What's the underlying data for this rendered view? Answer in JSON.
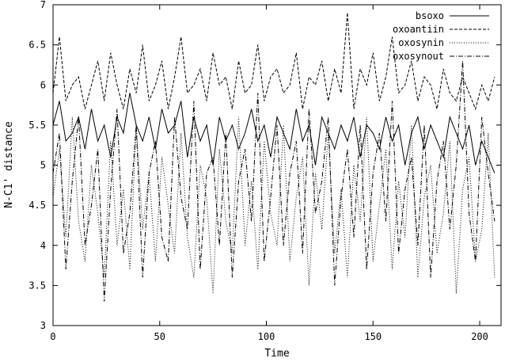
{
  "chart_data": {
    "type": "line",
    "title": "",
    "xlabel": "Time",
    "ylabel": "N-C1' distance",
    "xlim": [
      0,
      210
    ],
    "ylim": [
      3,
      7
    ],
    "x_ticks": [
      0,
      50,
      100,
      150,
      200
    ],
    "y_ticks": [
      3,
      3.5,
      4,
      4.5,
      5,
      5.5,
      6,
      6.5,
      7
    ],
    "grid": false,
    "legend_position": "top-right",
    "series": [
      {
        "name": "bsoxo",
        "dash": "solid",
        "x": [
          0,
          3,
          6,
          9,
          12,
          15,
          18,
          21,
          24,
          27,
          30,
          33,
          36,
          39,
          42,
          45,
          48,
          51,
          54,
          57,
          60,
          63,
          66,
          69,
          72,
          75,
          78,
          81,
          84,
          87,
          90,
          93,
          96,
          99,
          102,
          105,
          108,
          111,
          114,
          117,
          120,
          123,
          126,
          129,
          132,
          135,
          138,
          141,
          144,
          147,
          150,
          153,
          156,
          159,
          162,
          165,
          168,
          171,
          174,
          177,
          180,
          183,
          186,
          189,
          192,
          195,
          198,
          201,
          204,
          207
        ],
        "values": [
          5.5,
          5.8,
          5.3,
          5.4,
          5.6,
          5.2,
          5.7,
          5.3,
          5.5,
          5.1,
          5.6,
          5.4,
          5.9,
          5.5,
          5.3,
          5.6,
          5.2,
          5.7,
          5.4,
          5.5,
          5.8,
          5.1,
          5.6,
          5.3,
          5.5,
          5.0,
          5.6,
          5.3,
          5.5,
          5.2,
          5.4,
          5.7,
          5.3,
          5.5,
          5.1,
          5.6,
          5.4,
          5.2,
          5.7,
          5.3,
          5.5,
          5.0,
          5.6,
          5.4,
          5.2,
          5.5,
          5.3,
          5.6,
          5.1,
          5.5,
          5.4,
          5.2,
          5.6,
          5.3,
          5.5,
          5.0,
          5.4,
          5.6,
          5.2,
          5.5,
          5.3,
          5.1,
          5.6,
          5.4,
          5.2,
          5.5,
          5.0,
          5.3,
          5.1,
          4.9
        ]
      },
      {
        "name": "oxoantiin",
        "dash": "4,2",
        "x": [
          0,
          3,
          6,
          9,
          12,
          15,
          18,
          21,
          24,
          27,
          30,
          33,
          36,
          39,
          42,
          45,
          48,
          51,
          54,
          57,
          60,
          63,
          66,
          69,
          72,
          75,
          78,
          81,
          84,
          87,
          90,
          93,
          96,
          99,
          102,
          105,
          108,
          111,
          114,
          117,
          120,
          123,
          126,
          129,
          132,
          135,
          138,
          141,
          144,
          147,
          150,
          153,
          156,
          159,
          162,
          165,
          168,
          171,
          174,
          177,
          180,
          183,
          186,
          189,
          192,
          195,
          198,
          201,
          204,
          207
        ],
        "values": [
          5.9,
          6.6,
          5.8,
          6.0,
          6.1,
          5.7,
          6.0,
          6.3,
          5.8,
          6.4,
          6.0,
          5.7,
          6.2,
          5.9,
          6.5,
          5.8,
          6.0,
          6.3,
          5.7,
          6.1,
          6.6,
          5.9,
          6.0,
          6.2,
          5.8,
          6.4,
          6.0,
          6.1,
          5.7,
          6.3,
          5.9,
          6.0,
          6.5,
          5.8,
          6.1,
          6.2,
          5.9,
          6.0,
          6.4,
          5.7,
          6.1,
          6.0,
          6.3,
          5.8,
          6.2,
          5.9,
          6.9,
          5.7,
          6.2,
          6.0,
          6.4,
          5.8,
          6.1,
          6.6,
          5.9,
          6.0,
          6.3,
          5.8,
          6.1,
          6.0,
          5.7,
          6.2,
          5.9,
          5.8,
          6.1,
          5.9,
          5.7,
          6.0,
          5.8,
          6.1
        ]
      },
      {
        "name": "oxosynin",
        "dash": "1,2",
        "x": [
          0,
          3,
          6,
          9,
          12,
          15,
          18,
          21,
          24,
          27,
          30,
          33,
          36,
          39,
          42,
          45,
          48,
          51,
          54,
          57,
          60,
          63,
          66,
          69,
          72,
          75,
          78,
          81,
          84,
          87,
          90,
          93,
          96,
          99,
          102,
          105,
          108,
          111,
          114,
          117,
          120,
          123,
          126,
          129,
          132,
          135,
          138,
          141,
          144,
          147,
          150,
          153,
          156,
          159,
          162,
          165,
          168,
          171,
          174,
          177,
          180,
          183,
          186,
          189,
          192,
          195,
          198,
          201,
          204,
          207
        ],
        "values": [
          4.6,
          5.2,
          4.1,
          5.6,
          4.3,
          3.8,
          5.0,
          4.4,
          3.6,
          5.3,
          4.0,
          4.7,
          3.7,
          5.5,
          4.2,
          4.9,
          3.8,
          5.1,
          4.5,
          3.9,
          5.4,
          4.1,
          3.6,
          5.0,
          4.6,
          3.4,
          5.2,
          4.3,
          3.9,
          5.6,
          4.0,
          4.8,
          3.7,
          5.3,
          4.4,
          4.0,
          5.5,
          3.8,
          4.6,
          5.1,
          3.5,
          4.9,
          4.2,
          5.4,
          3.9,
          4.7,
          3.6,
          5.0,
          4.3,
          5.6,
          3.8,
          4.5,
          5.2,
          3.7,
          4.8,
          4.1,
          5.5,
          3.6,
          4.6,
          5.0,
          3.9,
          4.4,
          5.3,
          3.4,
          4.7,
          5.1,
          3.8,
          4.2,
          5.4,
          3.6
        ]
      },
      {
        "name": "oxosynout",
        "dash": "6,2,1,2",
        "x": [
          0,
          3,
          6,
          9,
          12,
          15,
          18,
          21,
          24,
          27,
          30,
          33,
          36,
          39,
          42,
          45,
          48,
          51,
          54,
          57,
          60,
          63,
          66,
          69,
          72,
          75,
          78,
          81,
          84,
          87,
          90,
          93,
          96,
          99,
          102,
          105,
          108,
          111,
          114,
          117,
          120,
          123,
          126,
          129,
          132,
          135,
          138,
          141,
          144,
          147,
          150,
          153,
          156,
          159,
          162,
          165,
          168,
          171,
          174,
          177,
          180,
          183,
          186,
          189,
          192,
          195,
          198,
          201,
          204,
          207
        ],
        "values": [
          4.9,
          5.4,
          3.7,
          4.8,
          5.6,
          4.0,
          4.5,
          5.2,
          3.3,
          4.7,
          5.7,
          3.9,
          4.4,
          5.5,
          3.6,
          4.9,
          5.3,
          4.1,
          3.8,
          5.6,
          4.6,
          4.2,
          5.8,
          3.7,
          4.9,
          5.1,
          4.0,
          5.4,
          3.6,
          4.8,
          5.2,
          4.3,
          5.9,
          3.8,
          4.6,
          5.5,
          4.0,
          4.9,
          5.3,
          3.9,
          5.7,
          4.4,
          4.8,
          5.6,
          3.5,
          4.6,
          5.2,
          4.1,
          5.5,
          3.7,
          4.9,
          5.4,
          4.3,
          5.8,
          3.9,
          4.7,
          5.1,
          4.0,
          5.5,
          3.6,
          4.8,
          5.3,
          4.2,
          5.0,
          6.3,
          4.4,
          3.8,
          5.6,
          4.9,
          4.3
        ]
      }
    ]
  }
}
